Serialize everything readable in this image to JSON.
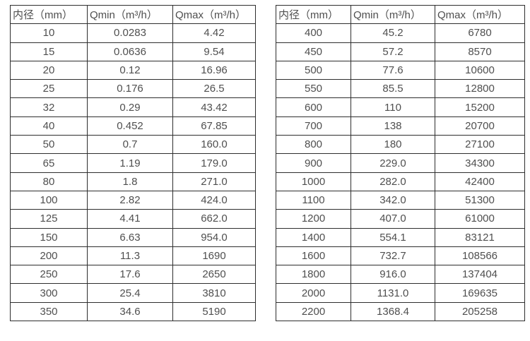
{
  "colors": {
    "border": "#2e2e2e",
    "text": "#4f4f4f",
    "background": "#ffffff"
  },
  "tables": [
    {
      "name": "flow-spec-small-diameters",
      "headers": [
        "内径（mm）",
        "Qmin（m³/h）",
        "Qmax（m³/h）"
      ],
      "rows": [
        [
          "10",
          "0.0283",
          "4.42"
        ],
        [
          "15",
          "0.0636",
          "9.54"
        ],
        [
          "20",
          "0.12",
          "16.96"
        ],
        [
          "25",
          "0.176",
          "26.5"
        ],
        [
          "32",
          "0.29",
          "43.42"
        ],
        [
          "40",
          "0.452",
          "67.85"
        ],
        [
          "50",
          "0.7",
          "160.0"
        ],
        [
          "65",
          "1.19",
          "179.0"
        ],
        [
          "80",
          "1.8",
          "271.0"
        ],
        [
          "100",
          "2.82",
          "424.0"
        ],
        [
          "125",
          "4.41",
          "662.0"
        ],
        [
          "150",
          "6.63",
          "954.0"
        ],
        [
          "200",
          "11.3",
          "1690"
        ],
        [
          "250",
          "17.6",
          "2650"
        ],
        [
          "300",
          "25.4",
          "3810"
        ],
        [
          "350",
          "34.6",
          "5190"
        ]
      ]
    },
    {
      "name": "flow-spec-large-diameters",
      "headers": [
        "内径（mm）",
        "Qmin（m³/h）",
        "Qmax（m³/h）"
      ],
      "rows": [
        [
          "400",
          "45.2",
          "6780"
        ],
        [
          "450",
          "57.2",
          "8570"
        ],
        [
          "500",
          "77.6",
          "10600"
        ],
        [
          "550",
          "85.5",
          "12800"
        ],
        [
          "600",
          "110",
          "15200"
        ],
        [
          "700",
          "138",
          "20700"
        ],
        [
          "800",
          "180",
          "27100"
        ],
        [
          "900",
          "229.0",
          "34300"
        ],
        [
          "1000",
          "282.0",
          "42400"
        ],
        [
          "1100",
          "342.0",
          "51300"
        ],
        [
          "1200",
          "407.0",
          "61000"
        ],
        [
          "1400",
          "554.1",
          "83121"
        ],
        [
          "1600",
          "732.7",
          "108566"
        ],
        [
          "1800",
          "916.0",
          "137404"
        ],
        [
          "2000",
          "1131.0",
          "169635"
        ],
        [
          "2200",
          "1368.4",
          "205258"
        ]
      ]
    }
  ]
}
